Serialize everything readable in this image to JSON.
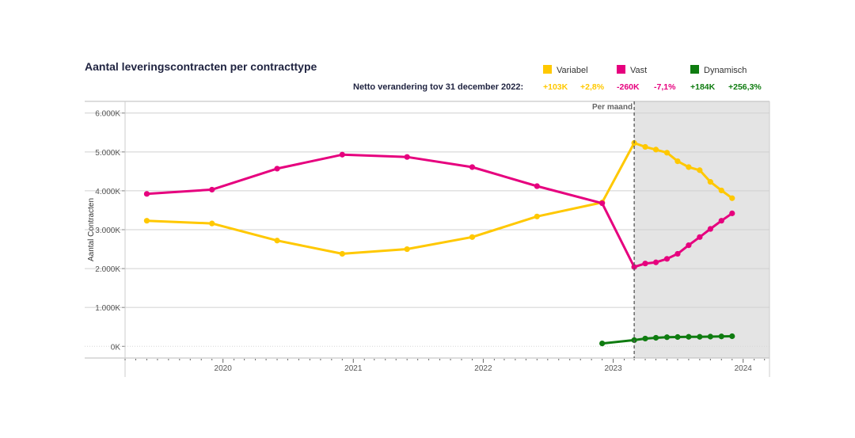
{
  "chart_data": {
    "type": "line",
    "title": "Aantal leveringscontracten per contracttype",
    "ylabel": "Aantal Contracten",
    "ylim": [
      -300,
      6300
    ],
    "y_ticks": [
      {
        "value": 0,
        "label": "0K"
      },
      {
        "value": 1000,
        "label": "1.000K"
      },
      {
        "value": 2000,
        "label": "2.000K"
      },
      {
        "value": 3000,
        "label": "3.000K"
      },
      {
        "value": 4000,
        "label": "4.000K"
      },
      {
        "value": 5000,
        "label": "5.000K"
      },
      {
        "value": 6000,
        "label": "6.000K"
      }
    ],
    "x_range": [
      "2019-04-01",
      "2024-03-15"
    ],
    "x_ticks": [
      {
        "date": "2020-01-01",
        "label": "2020"
      },
      {
        "date": "2021-01-01",
        "label": "2021"
      },
      {
        "date": "2022-01-01",
        "label": "2022"
      },
      {
        "date": "2023-01-01",
        "label": "2023"
      },
      {
        "date": "2024-01-01",
        "label": "2024"
      }
    ],
    "monthly_start": "2023-03-01",
    "monthly_label": "Per maand",
    "grid": true,
    "legend_position": "top-right",
    "netto_label": "Netto verandering tov 31 december 2022:",
    "series": [
      {
        "name": "Variabel",
        "color": "#FFC800",
        "change_abs": "+103K",
        "change_pct": "+2,8%",
        "points": [
          {
            "x": "2019-06-01",
            "y": 3230
          },
          {
            "x": "2019-12-01",
            "y": 3160
          },
          {
            "x": "2020-06-01",
            "y": 2720
          },
          {
            "x": "2020-12-01",
            "y": 2380
          },
          {
            "x": "2021-06-01",
            "y": 2500
          },
          {
            "x": "2021-12-01",
            "y": 2810
          },
          {
            "x": "2022-06-01",
            "y": 3340
          },
          {
            "x": "2022-12-01",
            "y": 3700
          },
          {
            "x": "2023-03-01",
            "y": 5230
          },
          {
            "x": "2023-04-01",
            "y": 5130
          },
          {
            "x": "2023-05-01",
            "y": 5060
          },
          {
            "x": "2023-06-01",
            "y": 4980
          },
          {
            "x": "2023-07-01",
            "y": 4760
          },
          {
            "x": "2023-08-01",
            "y": 4610
          },
          {
            "x": "2023-09-01",
            "y": 4530
          },
          {
            "x": "2023-10-01",
            "y": 4230
          },
          {
            "x": "2023-11-01",
            "y": 4010
          },
          {
            "x": "2023-12-01",
            "y": 3810
          }
        ]
      },
      {
        "name": "Vast",
        "color": "#E6007E",
        "change_abs": "-260K",
        "change_pct": "-7,1%",
        "points": [
          {
            "x": "2019-06-01",
            "y": 3920
          },
          {
            "x": "2019-12-01",
            "y": 4030
          },
          {
            "x": "2020-06-01",
            "y": 4570
          },
          {
            "x": "2020-12-01",
            "y": 4930
          },
          {
            "x": "2021-06-01",
            "y": 4870
          },
          {
            "x": "2021-12-01",
            "y": 4610
          },
          {
            "x": "2022-06-01",
            "y": 4120
          },
          {
            "x": "2022-12-01",
            "y": 3680
          },
          {
            "x": "2023-03-01",
            "y": 2040
          },
          {
            "x": "2023-04-01",
            "y": 2130
          },
          {
            "x": "2023-05-01",
            "y": 2160
          },
          {
            "x": "2023-06-01",
            "y": 2250
          },
          {
            "x": "2023-07-01",
            "y": 2380
          },
          {
            "x": "2023-08-01",
            "y": 2600
          },
          {
            "x": "2023-09-01",
            "y": 2810
          },
          {
            "x": "2023-10-01",
            "y": 3020
          },
          {
            "x": "2023-11-01",
            "y": 3230
          },
          {
            "x": "2023-12-01",
            "y": 3420
          }
        ]
      },
      {
        "name": "Dynamisch",
        "color": "#0F7C10",
        "change_abs": "+184K",
        "change_pct": "+256,3%",
        "points": [
          {
            "x": "2022-12-01",
            "y": 75
          },
          {
            "x": "2023-03-01",
            "y": 160
          },
          {
            "x": "2023-04-01",
            "y": 200
          },
          {
            "x": "2023-05-01",
            "y": 220
          },
          {
            "x": "2023-06-01",
            "y": 235
          },
          {
            "x": "2023-07-01",
            "y": 240
          },
          {
            "x": "2023-08-01",
            "y": 245
          },
          {
            "x": "2023-09-01",
            "y": 245
          },
          {
            "x": "2023-10-01",
            "y": 250
          },
          {
            "x": "2023-11-01",
            "y": 255
          },
          {
            "x": "2023-12-01",
            "y": 260
          }
        ]
      }
    ]
  }
}
